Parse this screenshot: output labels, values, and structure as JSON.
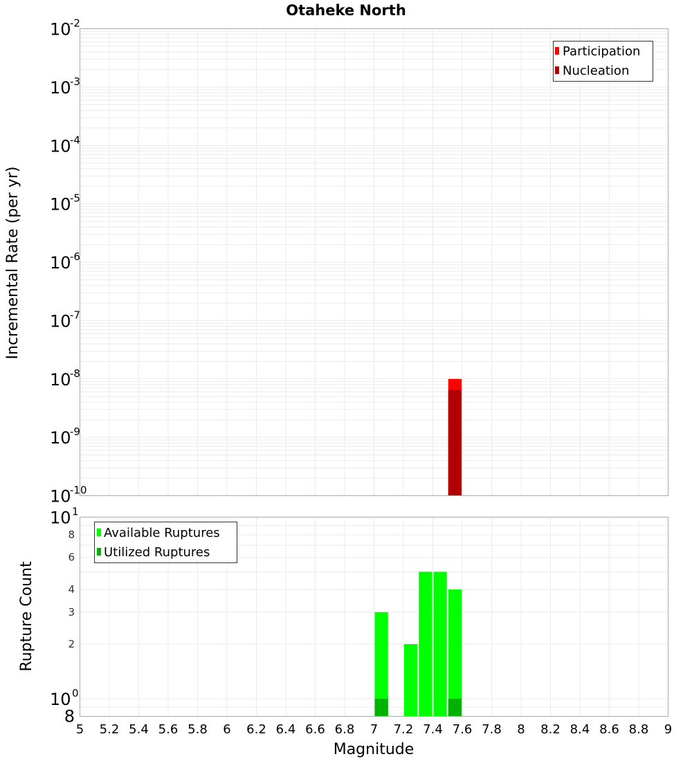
{
  "chart_data": [
    {
      "type": "bar",
      "title": "Otaheke North",
      "xlabel": "Magnitude",
      "ylabel": "Incremental Rate (per yr)",
      "yscale": "log",
      "ylim": [
        1e-10,
        0.01
      ],
      "xlim": [
        5,
        9
      ],
      "grid": true,
      "legend_position": "top-right",
      "y_tick_labels": [
        {
          "base": "10",
          "exp": "-2",
          "value": 0.01
        },
        {
          "base": "10",
          "exp": "-3",
          "value": 0.001
        },
        {
          "base": "10",
          "exp": "-4",
          "value": 0.0001
        },
        {
          "base": "10",
          "exp": "-5",
          "value": 1e-05
        },
        {
          "base": "10",
          "exp": "-6",
          "value": 1e-06
        },
        {
          "base": "10",
          "exp": "-7",
          "value": 1e-07
        },
        {
          "base": "10",
          "exp": "-8",
          "value": 1e-08
        },
        {
          "base": "10",
          "exp": "-9",
          "value": 1e-09
        },
        {
          "base": "10",
          "exp": "-10",
          "value": 1e-10
        }
      ],
      "bin_width": 0.1,
      "series": [
        {
          "name": "Participation",
          "color": "#ff0000",
          "bins": [
            {
              "x": 7.55,
              "value": 1e-08
            }
          ]
        },
        {
          "name": "Nucleation",
          "color": "#b20000",
          "bins": [
            {
              "x": 7.55,
              "value": 6.5e-09
            }
          ]
        }
      ]
    },
    {
      "type": "bar",
      "title": "",
      "xlabel": "Magnitude",
      "ylabel": "Rupture Count",
      "yscale": "log",
      "ylim": [
        0.8,
        10
      ],
      "xlim": [
        5,
        9
      ],
      "grid": true,
      "legend_position": "top-left",
      "y_tick_labels": [
        {
          "label": "10",
          "exp": "1",
          "value": 10,
          "major": true
        },
        {
          "label": "8",
          "value": 8
        },
        {
          "label": "6",
          "value": 6
        },
        {
          "label": "4",
          "value": 4
        },
        {
          "label": "3",
          "value": 3
        },
        {
          "label": "2",
          "value": 2
        },
        {
          "label": "10",
          "exp": "0",
          "value": 1,
          "major": true
        },
        {
          "label": "8",
          "value": 0.8,
          "major": true
        }
      ],
      "bin_width": 0.1,
      "series": [
        {
          "name": "Available Ruptures",
          "color": "#00ff00",
          "bins": [
            {
              "x": 7.05,
              "value": 3
            },
            {
              "x": 7.25,
              "value": 2
            },
            {
              "x": 7.35,
              "value": 5
            },
            {
              "x": 7.45,
              "value": 5
            },
            {
              "x": 7.55,
              "value": 4
            }
          ]
        },
        {
          "name": "Utilized Ruptures",
          "color": "#00b200",
          "bins": [
            {
              "x": 7.05,
              "value": 1
            },
            {
              "x": 7.55,
              "value": 1
            }
          ]
        }
      ]
    }
  ],
  "x_tick_labels": [
    "5",
    "5.2",
    "5.4",
    "5.6",
    "5.8",
    "6",
    "6.2",
    "6.4",
    "6.6",
    "6.8",
    "7",
    "7.2",
    "7.4",
    "7.6",
    "7.8",
    "8",
    "8.2",
    "8.4",
    "8.6",
    "8.8",
    "9"
  ],
  "colors": {
    "participation": "#ff0000",
    "nucleation": "#b20000",
    "available": "#00ff00",
    "utilized": "#00b200",
    "grid": "#ebebeb",
    "axis": "#aaaaaa"
  }
}
